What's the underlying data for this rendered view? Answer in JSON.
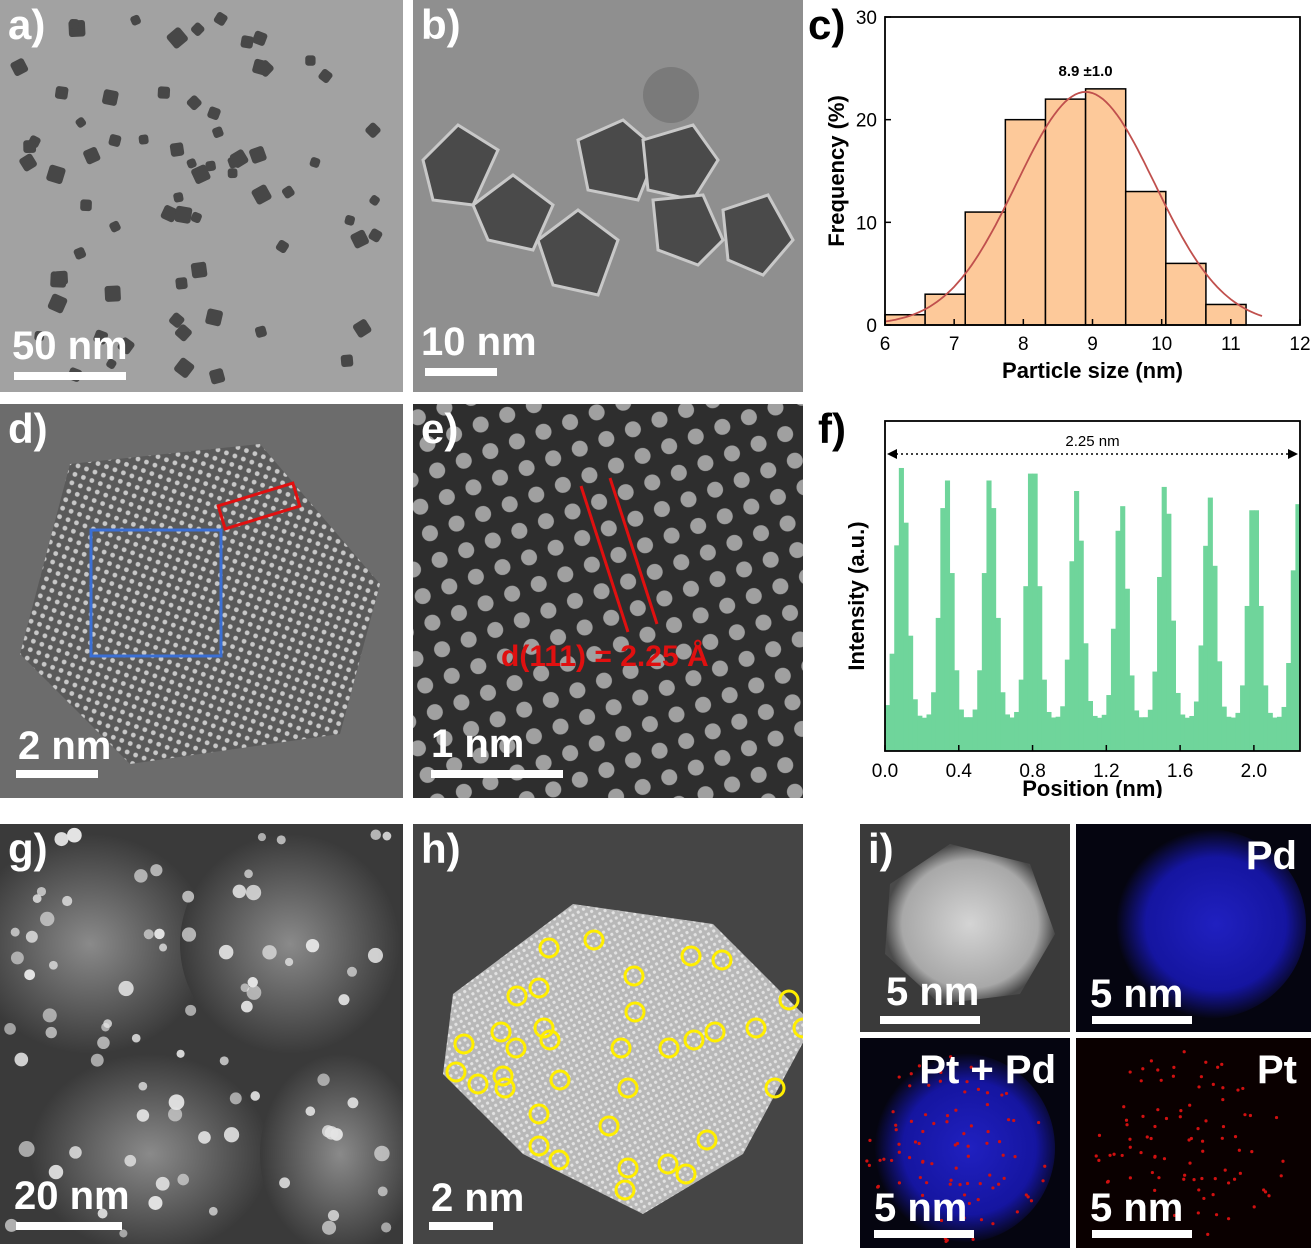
{
  "panels": {
    "a": {
      "label": "a)",
      "scale": "50 nm"
    },
    "b": {
      "label": "b)",
      "scale": "10 nm"
    },
    "c": {
      "label": "c)"
    },
    "d": {
      "label": "d)",
      "scale": "2 nm"
    },
    "e": {
      "label": "e)",
      "scale": "1 nm",
      "annotation": "d(111) = 2.25 Å"
    },
    "f": {
      "label": "f)"
    },
    "g": {
      "label": "g)",
      "scale": "20 nm"
    },
    "h": {
      "label": "h)",
      "scale": "2 nm"
    },
    "i": {
      "label": "i)",
      "scale": "5 nm",
      "maps": [
        {
          "title": "",
          "scale": "5 nm"
        },
        {
          "title": "Pd",
          "scale": "5 nm"
        },
        {
          "title": "Pt + Pd",
          "scale": "5 nm"
        },
        {
          "title": "Pt",
          "scale": "5 nm"
        }
      ]
    }
  },
  "colors": {
    "histogram_fill": "#fdc99a",
    "fit_curve": "#c0504d",
    "profile_fill": "#6fd59b",
    "pd_map": "#1a1ab4",
    "pt_map": "#d01010",
    "circle_marker": "#ffee00",
    "box_blue": "#3b6fd4",
    "box_red": "#e01010"
  },
  "chart_data": [
    {
      "type": "bar",
      "panel": "c",
      "title": "",
      "annotation": "8.9 ±1.0",
      "xlabel": "Particle size (nm)",
      "ylabel": "Frequency (%)",
      "xlim": [
        6,
        12
      ],
      "ylim": [
        0,
        30
      ],
      "xticks": [
        "6",
        "7",
        "8",
        "9",
        "10",
        "11",
        "12"
      ],
      "yticks": [
        "0",
        "10",
        "20",
        "30"
      ],
      "bin_width": 0.58,
      "bin_starts": [
        6.0,
        6.58,
        7.16,
        7.74,
        8.32,
        8.9,
        9.48,
        10.06,
        10.64,
        11.22
      ],
      "values": [
        1,
        3,
        11,
        20,
        22,
        23,
        13,
        6,
        2,
        0
      ],
      "fit": {
        "type": "gaussian",
        "mean": 8.9,
        "sigma": 1.0,
        "peak": 22.7
      }
    },
    {
      "type": "bar",
      "panel": "f",
      "title": "",
      "annotation": "2.25 nm",
      "xlabel": "Position (nm)",
      "ylabel": "Intensity (a.u.)",
      "xlim": [
        0,
        2.25
      ],
      "xticks": [
        "0.0",
        "0.4",
        "0.8",
        "1.2",
        "1.6",
        "2.0"
      ],
      "peak_positions": [
        0.09,
        0.33,
        0.57,
        0.8,
        1.04,
        1.28,
        1.52,
        1.76,
        2.0,
        2.24
      ],
      "peak_heights": [
        0.86,
        0.84,
        0.84,
        0.9,
        0.79,
        0.76,
        0.82,
        0.77,
        0.78,
        0.75
      ],
      "baseline": 0.1
    }
  ]
}
